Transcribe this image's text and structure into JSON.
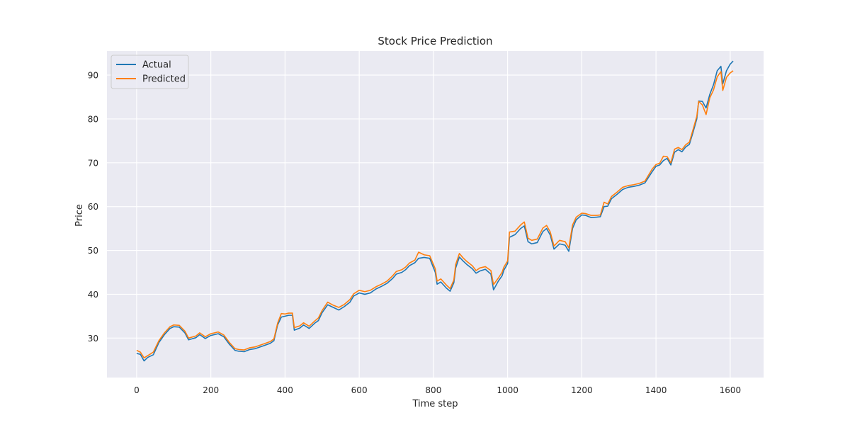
{
  "chart_data": {
    "type": "line",
    "title": "Stock Price Prediction",
    "xlabel": "Time step",
    "ylabel": "Price",
    "xlim": [
      -80,
      1690
    ],
    "ylim": [
      21,
      95.5
    ],
    "xticks": [
      0,
      200,
      400,
      600,
      800,
      1000,
      1200,
      1400,
      1600
    ],
    "yticks": [
      30,
      40,
      50,
      60,
      70,
      80,
      90
    ],
    "grid": true,
    "legend_position": "top-left",
    "background_color": "#eaeaf2",
    "series": [
      {
        "name": "Actual",
        "color": "#1f77b4",
        "points": [
          [
            0,
            26.5
          ],
          [
            10,
            26.3
          ],
          [
            20,
            24.8
          ],
          [
            30,
            25.6
          ],
          [
            45,
            26.2
          ],
          [
            60,
            29.0
          ],
          [
            75,
            30.8
          ],
          [
            90,
            32.2
          ],
          [
            100,
            32.6
          ],
          [
            115,
            32.5
          ],
          [
            130,
            31.2
          ],
          [
            140,
            29.6
          ],
          [
            160,
            30.1
          ],
          [
            170,
            30.8
          ],
          [
            185,
            29.9
          ],
          [
            200,
            30.6
          ],
          [
            220,
            31.0
          ],
          [
            235,
            30.3
          ],
          [
            250,
            28.6
          ],
          [
            265,
            27.2
          ],
          [
            275,
            27.0
          ],
          [
            290,
            26.9
          ],
          [
            305,
            27.4
          ],
          [
            320,
            27.6
          ],
          [
            340,
            28.2
          ],
          [
            360,
            28.8
          ],
          [
            370,
            29.4
          ],
          [
            380,
            33.0
          ],
          [
            390,
            34.8
          ],
          [
            400,
            35.0
          ],
          [
            410,
            35.2
          ],
          [
            420,
            35.2
          ],
          [
            425,
            31.8
          ],
          [
            440,
            32.3
          ],
          [
            450,
            33.0
          ],
          [
            465,
            32.2
          ],
          [
            480,
            33.4
          ],
          [
            490,
            34.0
          ],
          [
            500,
            35.8
          ],
          [
            515,
            37.6
          ],
          [
            530,
            37.0
          ],
          [
            545,
            36.4
          ],
          [
            560,
            37.2
          ],
          [
            575,
            38.2
          ],
          [
            585,
            39.6
          ],
          [
            600,
            40.3
          ],
          [
            615,
            40.0
          ],
          [
            630,
            40.3
          ],
          [
            645,
            41.2
          ],
          [
            660,
            41.8
          ],
          [
            675,
            42.5
          ],
          [
            690,
            43.6
          ],
          [
            700,
            44.6
          ],
          [
            715,
            45.0
          ],
          [
            725,
            45.6
          ],
          [
            735,
            46.5
          ],
          [
            750,
            47.2
          ],
          [
            760,
            48.2
          ],
          [
            775,
            48.4
          ],
          [
            790,
            48.2
          ],
          [
            805,
            45.0
          ],
          [
            810,
            42.3
          ],
          [
            820,
            42.8
          ],
          [
            835,
            41.4
          ],
          [
            845,
            40.7
          ],
          [
            855,
            42.6
          ],
          [
            860,
            46.0
          ],
          [
            870,
            48.5
          ],
          [
            880,
            47.6
          ],
          [
            890,
            46.8
          ],
          [
            905,
            45.8
          ],
          [
            915,
            44.8
          ],
          [
            925,
            45.3
          ],
          [
            940,
            45.7
          ],
          [
            955,
            44.6
          ],
          [
            962,
            41.0
          ],
          [
            975,
            43.0
          ],
          [
            985,
            44.2
          ],
          [
            990,
            45.5
          ],
          [
            1000,
            47.0
          ],
          [
            1005,
            53.0
          ],
          [
            1020,
            53.6
          ],
          [
            1035,
            55.0
          ],
          [
            1045,
            55.6
          ],
          [
            1055,
            52.0
          ],
          [
            1065,
            51.5
          ],
          [
            1080,
            51.8
          ],
          [
            1095,
            54.3
          ],
          [
            1105,
            55.0
          ],
          [
            1115,
            53.5
          ],
          [
            1125,
            50.3
          ],
          [
            1140,
            51.5
          ],
          [
            1155,
            51.2
          ],
          [
            1165,
            49.8
          ],
          [
            1175,
            55.0
          ],
          [
            1185,
            57.0
          ],
          [
            1200,
            58.1
          ],
          [
            1210,
            58.0
          ],
          [
            1225,
            57.5
          ],
          [
            1240,
            57.6
          ],
          [
            1250,
            57.7
          ],
          [
            1260,
            60.0
          ],
          [
            1270,
            60.1
          ],
          [
            1280,
            61.8
          ],
          [
            1295,
            62.8
          ],
          [
            1310,
            63.9
          ],
          [
            1325,
            64.4
          ],
          [
            1340,
            64.6
          ],
          [
            1355,
            64.9
          ],
          [
            1370,
            65.4
          ],
          [
            1390,
            68.0
          ],
          [
            1400,
            69.2
          ],
          [
            1410,
            69.5
          ],
          [
            1420,
            70.5
          ],
          [
            1430,
            71.0
          ],
          [
            1440,
            69.5
          ],
          [
            1450,
            72.4
          ],
          [
            1460,
            73.0
          ],
          [
            1470,
            72.5
          ],
          [
            1480,
            73.6
          ],
          [
            1490,
            74.2
          ],
          [
            1500,
            77.0
          ],
          [
            1510,
            80.0
          ],
          [
            1515,
            84.1
          ],
          [
            1525,
            84.0
          ],
          [
            1535,
            82.5
          ],
          [
            1545,
            85.6
          ],
          [
            1555,
            87.8
          ],
          [
            1565,
            91.0
          ],
          [
            1575,
            92.0
          ],
          [
            1580,
            88.0
          ],
          [
            1590,
            91.0
          ],
          [
            1600,
            92.5
          ],
          [
            1608,
            93.2
          ]
        ]
      },
      {
        "name": "Predicted",
        "color": "#ff7f0e",
        "points": [
          [
            0,
            27.2
          ],
          [
            10,
            26.8
          ],
          [
            20,
            25.5
          ],
          [
            30,
            26.0
          ],
          [
            45,
            26.8
          ],
          [
            60,
            29.4
          ],
          [
            75,
            31.2
          ],
          [
            90,
            32.6
          ],
          [
            100,
            33.0
          ],
          [
            115,
            32.9
          ],
          [
            130,
            31.6
          ],
          [
            140,
            30.0
          ],
          [
            160,
            30.5
          ],
          [
            170,
            31.2
          ],
          [
            185,
            30.3
          ],
          [
            200,
            31.0
          ],
          [
            220,
            31.4
          ],
          [
            235,
            30.7
          ],
          [
            250,
            29.0
          ],
          [
            265,
            27.6
          ],
          [
            275,
            27.4
          ],
          [
            290,
            27.3
          ],
          [
            305,
            27.8
          ],
          [
            320,
            28.0
          ],
          [
            340,
            28.6
          ],
          [
            360,
            29.2
          ],
          [
            370,
            29.8
          ],
          [
            380,
            33.4
          ],
          [
            390,
            35.6
          ],
          [
            400,
            35.5
          ],
          [
            410,
            35.7
          ],
          [
            420,
            35.7
          ],
          [
            425,
            32.4
          ],
          [
            440,
            32.8
          ],
          [
            450,
            33.5
          ],
          [
            465,
            32.7
          ],
          [
            480,
            33.9
          ],
          [
            490,
            34.6
          ],
          [
            500,
            36.3
          ],
          [
            515,
            38.2
          ],
          [
            530,
            37.5
          ],
          [
            545,
            37.0
          ],
          [
            560,
            37.7
          ],
          [
            575,
            38.8
          ],
          [
            585,
            40.1
          ],
          [
            600,
            40.9
          ],
          [
            615,
            40.6
          ],
          [
            630,
            40.9
          ],
          [
            645,
            41.7
          ],
          [
            660,
            42.3
          ],
          [
            675,
            43.0
          ],
          [
            690,
            44.2
          ],
          [
            700,
            45.2
          ],
          [
            715,
            45.6
          ],
          [
            725,
            46.2
          ],
          [
            735,
            47.1
          ],
          [
            750,
            47.8
          ],
          [
            760,
            49.6
          ],
          [
            775,
            49.0
          ],
          [
            790,
            48.8
          ],
          [
            805,
            45.8
          ],
          [
            810,
            43.0
          ],
          [
            820,
            43.5
          ],
          [
            835,
            42.1
          ],
          [
            845,
            41.3
          ],
          [
            855,
            43.2
          ],
          [
            860,
            46.8
          ],
          [
            870,
            49.3
          ],
          [
            880,
            48.3
          ],
          [
            890,
            47.5
          ],
          [
            905,
            46.5
          ],
          [
            915,
            45.4
          ],
          [
            925,
            46.0
          ],
          [
            940,
            46.3
          ],
          [
            955,
            45.4
          ],
          [
            962,
            42.2
          ],
          [
            975,
            43.7
          ],
          [
            985,
            45.0
          ],
          [
            990,
            46.2
          ],
          [
            1000,
            47.6
          ],
          [
            1005,
            54.2
          ],
          [
            1020,
            54.4
          ],
          [
            1035,
            55.8
          ],
          [
            1045,
            56.5
          ],
          [
            1055,
            52.8
          ],
          [
            1065,
            52.3
          ],
          [
            1080,
            52.6
          ],
          [
            1095,
            55.1
          ],
          [
            1105,
            55.7
          ],
          [
            1115,
            54.2
          ],
          [
            1125,
            51.0
          ],
          [
            1140,
            52.3
          ],
          [
            1155,
            52.0
          ],
          [
            1165,
            50.6
          ],
          [
            1175,
            55.8
          ],
          [
            1185,
            57.6
          ],
          [
            1200,
            58.5
          ],
          [
            1210,
            58.4
          ],
          [
            1225,
            58.0
          ],
          [
            1240,
            58.0
          ],
          [
            1250,
            58.1
          ],
          [
            1260,
            61.0
          ],
          [
            1270,
            60.6
          ],
          [
            1280,
            62.3
          ],
          [
            1295,
            63.3
          ],
          [
            1310,
            64.4
          ],
          [
            1325,
            64.8
          ],
          [
            1340,
            65.0
          ],
          [
            1355,
            65.3
          ],
          [
            1370,
            65.8
          ],
          [
            1390,
            68.6
          ],
          [
            1400,
            69.6
          ],
          [
            1410,
            69.9
          ],
          [
            1420,
            71.5
          ],
          [
            1430,
            71.4
          ],
          [
            1440,
            70.0
          ],
          [
            1450,
            73.1
          ],
          [
            1460,
            73.5
          ],
          [
            1470,
            73.0
          ],
          [
            1480,
            74.1
          ],
          [
            1490,
            74.7
          ],
          [
            1500,
            77.6
          ],
          [
            1510,
            80.6
          ],
          [
            1515,
            84.0
          ],
          [
            1525,
            83.2
          ],
          [
            1535,
            81.0
          ],
          [
            1545,
            84.8
          ],
          [
            1555,
            86.6
          ],
          [
            1565,
            89.6
          ],
          [
            1575,
            90.8
          ],
          [
            1580,
            86.5
          ],
          [
            1590,
            89.5
          ],
          [
            1600,
            90.5
          ],
          [
            1608,
            91.0
          ]
        ]
      }
    ]
  }
}
